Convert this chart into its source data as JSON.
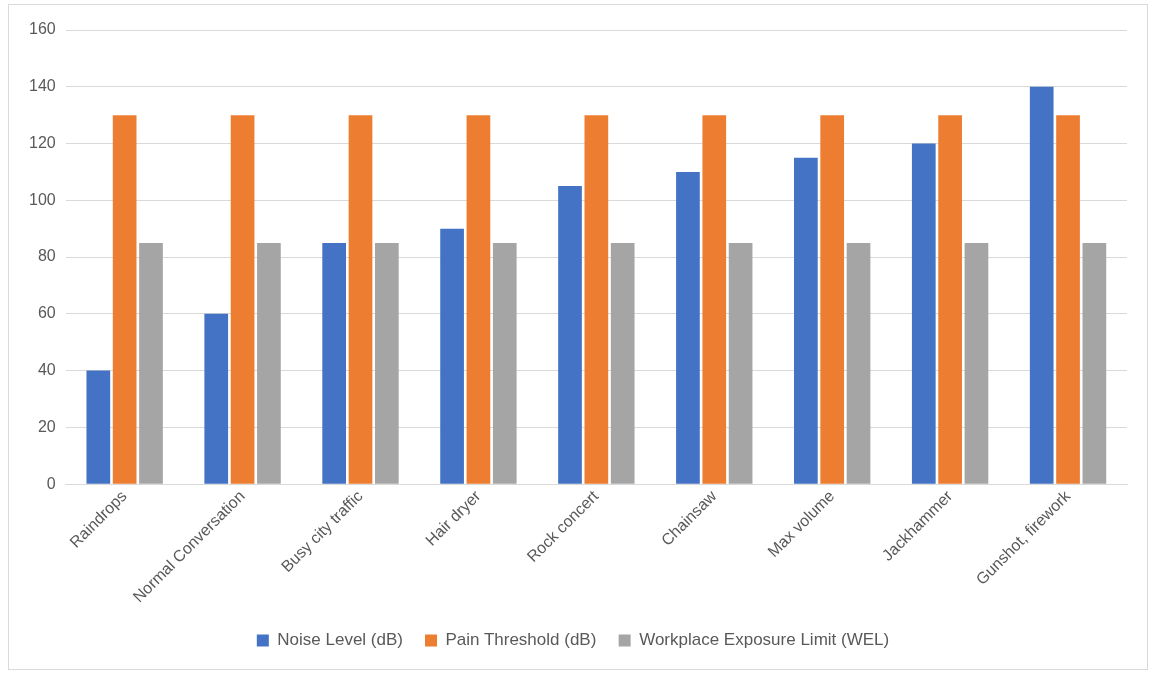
{
  "chart_data": {
    "type": "bar",
    "categories": [
      "Raindrops",
      "Normal Conversation",
      "Busy city traffic",
      "Hair dryer",
      "Rock concert",
      "Chainsaw",
      "Max volume",
      "Jackhammer",
      "Gunshot, firework"
    ],
    "series": [
      {
        "name": "Noise Level (dB)",
        "color": "#4472c4",
        "values": [
          40,
          60,
          85,
          90,
          105,
          110,
          115,
          120,
          140
        ]
      },
      {
        "name": "Pain Threshold (dB)",
        "color": "#ed7d31",
        "values": [
          130,
          130,
          130,
          130,
          130,
          130,
          130,
          130,
          130
        ]
      },
      {
        "name": "Workplace Exposure Limit (WEL)",
        "color": "#a5a5a5",
        "values": [
          85,
          85,
          85,
          85,
          85,
          85,
          85,
          85,
          85
        ]
      }
    ],
    "ylim": [
      0,
      160
    ],
    "yticks": [
      0,
      20,
      40,
      60,
      80,
      100,
      120,
      140,
      160
    ],
    "grid": "y",
    "legend": "bottom"
  }
}
